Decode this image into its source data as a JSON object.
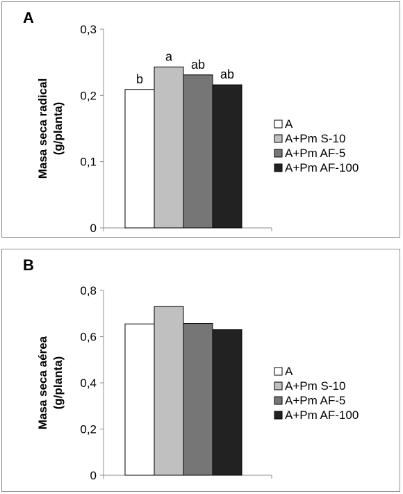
{
  "chart_data": [
    {
      "type": "bar",
      "panel_label": "A",
      "title": "",
      "xlabel": "",
      "ylabel_lines": [
        "Masa seca radical",
        "(g/planta)"
      ],
      "ylim": [
        0,
        0.3
      ],
      "yticks": [
        0,
        0.1,
        0.2,
        0.3
      ],
      "ytick_labels": [
        "0",
        "0,1",
        "0,2",
        "0,3"
      ],
      "series": [
        {
          "name": "A",
          "value": 0.209,
          "color": "#ffffff",
          "sig": "b"
        },
        {
          "name": "A+Pm S-10",
          "value": 0.243,
          "color": "#c0c0c0",
          "sig": "a"
        },
        {
          "name": "A+Pm AF-5",
          "value": 0.231,
          "color": "#767676",
          "sig": "ab"
        },
        {
          "name": "A+Pm AF-100",
          "value": 0.216,
          "color": "#222222",
          "sig": "ab"
        }
      ],
      "grid": false,
      "legend_position": "right"
    },
    {
      "type": "bar",
      "panel_label": "B",
      "title": "",
      "xlabel": "",
      "ylabel_lines": [
        "Masa seca aérea",
        "(g/planta)"
      ],
      "ylim": [
        0,
        0.8
      ],
      "yticks": [
        0,
        0.2,
        0.4,
        0.6,
        0.8
      ],
      "ytick_labels": [
        "0",
        "0,2",
        "0,4",
        "0,6",
        "0,8"
      ],
      "series": [
        {
          "name": "A",
          "value": 0.655,
          "color": "#ffffff"
        },
        {
          "name": "A+Pm S-10",
          "value": 0.73,
          "color": "#c0c0c0"
        },
        {
          "name": "A+Pm AF-5",
          "value": 0.657,
          "color": "#767676"
        },
        {
          "name": "A+Pm AF-100",
          "value": 0.63,
          "color": "#222222"
        }
      ],
      "grid": false,
      "legend_position": "right"
    }
  ]
}
